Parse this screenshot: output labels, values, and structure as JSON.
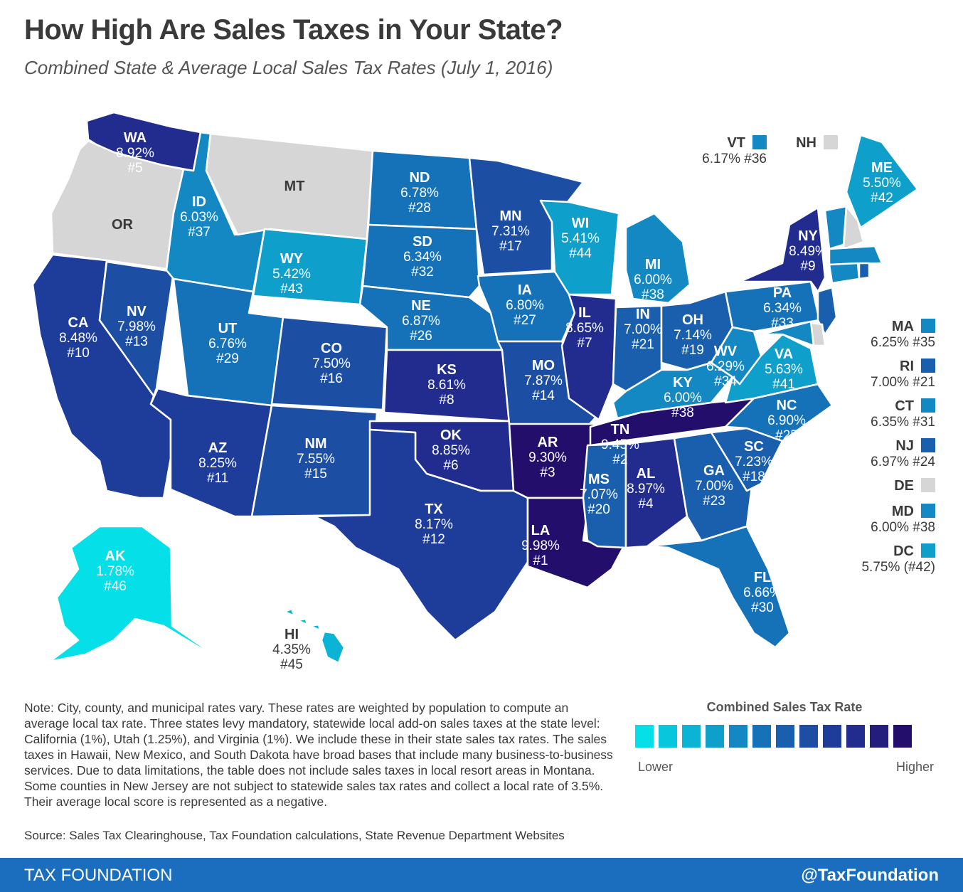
{
  "title": "How High Are Sales Taxes in Your State?",
  "subtitle": "Combined State & Average Local Sales Tax Rates (July 1, 2016)",
  "colors": {
    "c1": "#05e0e8",
    "c2": "#08c7dc",
    "c3": "#0bb3d4",
    "c4": "#0f9fcb",
    "c5": "#1388c2",
    "c6": "#1672b8",
    "c7": "#195fae",
    "c8": "#1c4ea4",
    "c9": "#1e3c9a",
    "c10": "#222c8e",
    "c11": "#230f6b",
    "na": "#d6d6d6"
  },
  "states": {
    "WA": {
      "abbr": "WA",
      "rate": "8.92%",
      "rank": "#5",
      "color": "c10"
    },
    "OR": {
      "abbr": "OR",
      "rate": "",
      "rank": "",
      "color": "na"
    },
    "CA": {
      "abbr": "CA",
      "rate": "8.48%",
      "rank": "#10",
      "color": "c9"
    },
    "NV": {
      "abbr": "NV",
      "rate": "7.98%",
      "rank": "#13",
      "color": "c8"
    },
    "ID": {
      "abbr": "ID",
      "rate": "6.03%",
      "rank": "#37",
      "color": "c5"
    },
    "MT": {
      "abbr": "MT",
      "rate": "",
      "rank": "",
      "color": "na"
    },
    "WY": {
      "abbr": "WY",
      "rate": "5.42%",
      "rank": "#43",
      "color": "c4"
    },
    "UT": {
      "abbr": "UT",
      "rate": "6.76%",
      "rank": "#29",
      "color": "c6"
    },
    "AZ": {
      "abbr": "AZ",
      "rate": "8.25%",
      "rank": "#11",
      "color": "c9"
    },
    "CO": {
      "abbr": "CO",
      "rate": "7.50%",
      "rank": "#16",
      "color": "c8"
    },
    "NM": {
      "abbr": "NM",
      "rate": "7.55%",
      "rank": "#15",
      "color": "c8"
    },
    "ND": {
      "abbr": "ND",
      "rate": "6.78%",
      "rank": "#28",
      "color": "c6"
    },
    "SD": {
      "abbr": "SD",
      "rate": "6.34%",
      "rank": "#32",
      "color": "c6"
    },
    "NE": {
      "abbr": "NE",
      "rate": "6.87%",
      "rank": "#26",
      "color": "c6"
    },
    "KS": {
      "abbr": "KS",
      "rate": "8.61%",
      "rank": "#8",
      "color": "c10"
    },
    "OK": {
      "abbr": "OK",
      "rate": "8.85%",
      "rank": "#6",
      "color": "c10"
    },
    "TX": {
      "abbr": "TX",
      "rate": "8.17%",
      "rank": "#12",
      "color": "c9"
    },
    "MN": {
      "abbr": "MN",
      "rate": "7.31%",
      "rank": "#17",
      "color": "c8"
    },
    "IA": {
      "abbr": "IA",
      "rate": "6.80%",
      "rank": "#27",
      "color": "c6"
    },
    "MO": {
      "abbr": "MO",
      "rate": "7.87%",
      "rank": "#14",
      "color": "c8"
    },
    "AR": {
      "abbr": "AR",
      "rate": "9.30%",
      "rank": "#3",
      "color": "c11"
    },
    "LA": {
      "abbr": "LA",
      "rate": "9.98%",
      "rank": "#1",
      "color": "c11"
    },
    "WI": {
      "abbr": "WI",
      "rate": "5.41%",
      "rank": "#44",
      "color": "c4"
    },
    "IL": {
      "abbr": "IL",
      "rate": "8.65%",
      "rank": "#7",
      "color": "c10"
    },
    "MI": {
      "abbr": "MI",
      "rate": "6.00%",
      "rank": "#38",
      "color": "c5"
    },
    "IN": {
      "abbr": "IN",
      "rate": "7.00%",
      "rank": "#21",
      "color": "c7"
    },
    "OH": {
      "abbr": "OH",
      "rate": "7.14%",
      "rank": "#19",
      "color": "c7"
    },
    "KY": {
      "abbr": "KY",
      "rate": "6.00%",
      "rank": "#38",
      "color": "c5"
    },
    "TN": {
      "abbr": "TN",
      "rate": "9.45%",
      "rank": "#2",
      "color": "c11"
    },
    "MS": {
      "abbr": "MS",
      "rate": "7.07%",
      "rank": "#20",
      "color": "c7"
    },
    "AL": {
      "abbr": "AL",
      "rate": "8.97%",
      "rank": "#4",
      "color": "c10"
    },
    "GA": {
      "abbr": "GA",
      "rate": "7.00%",
      "rank": "#23",
      "color": "c7"
    },
    "FL": {
      "abbr": "FL",
      "rate": "6.66%",
      "rank": "#30",
      "color": "c6"
    },
    "SC": {
      "abbr": "SC",
      "rate": "7.23%",
      "rank": "#18",
      "color": "c7"
    },
    "NC": {
      "abbr": "NC",
      "rate": "6.90%",
      "rank": "#25",
      "color": "c6"
    },
    "VA": {
      "abbr": "VA",
      "rate": "5.63%",
      "rank": "#41",
      "color": "c4"
    },
    "WV": {
      "abbr": "WV",
      "rate": "6.29%",
      "rank": "#34",
      "color": "c5"
    },
    "PA": {
      "abbr": "PA",
      "rate": "6.34%",
      "rank": "#33",
      "color": "c6"
    },
    "NY": {
      "abbr": "NY",
      "rate": "8.49%",
      "rank": "#9",
      "color": "c10"
    },
    "ME": {
      "abbr": "ME",
      "rate": "5.50%",
      "rank": "#42",
      "color": "c4"
    },
    "AK": {
      "abbr": "AK",
      "rate": "1.78%",
      "rank": "#46",
      "color": "c1"
    },
    "HI": {
      "abbr": "HI",
      "rate": "4.35%",
      "rank": "#45",
      "color": "c3"
    }
  },
  "small_states": {
    "VT": {
      "abbr": "VT",
      "detail": "6.17% #36",
      "color": "c5"
    },
    "NH": {
      "abbr": "NH",
      "detail": "",
      "color": "na"
    },
    "MA": {
      "abbr": "MA",
      "detail": "6.25% #35",
      "color": "c5"
    },
    "RI": {
      "abbr": "RI",
      "detail": "7.00% #21",
      "color": "c7"
    },
    "CT": {
      "abbr": "CT",
      "detail": "6.35% #31",
      "color": "c5"
    },
    "NJ": {
      "abbr": "NJ",
      "detail": "6.97% #24",
      "color": "c7"
    },
    "DE": {
      "abbr": "DE",
      "detail": "",
      "color": "na"
    },
    "MD": {
      "abbr": "MD",
      "detail": "6.00% #38",
      "color": "c5"
    },
    "DC": {
      "abbr": "DC",
      "detail": "5.75% (#42)",
      "color": "c4"
    }
  },
  "legend": {
    "title": "Combined Sales Tax Rate",
    "low": "Lower",
    "high": "Higher",
    "scale": [
      "#05e0e8",
      "#08c7dc",
      "#0bb3d4",
      "#0f9fcb",
      "#1388c2",
      "#1672b8",
      "#195fae",
      "#1c4ea4",
      "#1e3c9a",
      "#222c8e",
      "#241d7d",
      "#230f6b"
    ]
  },
  "note": "Note: City, county, and municipal rates vary. These rates are weighted by population to compute an average local tax rate. Three states levy mandatory, statewide local add-on sales taxes at the state level: California (1%), Utah (1.25%), and Virginia (1%). We include these in their state sales tax rates. The sales taxes in Hawaii, New Mexico, and South Dakota have broad bases that include many business-to-business services. Due to data limitations, the table does not include sales taxes in local resort areas in Montana. Some counties in New Jersey are not subject to statewide sales tax rates and collect a local rate of 3.5%. Their average local score is represented as a negative.",
  "source": "Source: Sales Tax Clearinghouse, Tax Foundation calculations, State Revenue Department Websites",
  "footer": {
    "left": "TAX FOUNDATION",
    "right": "@TaxFoundation"
  }
}
